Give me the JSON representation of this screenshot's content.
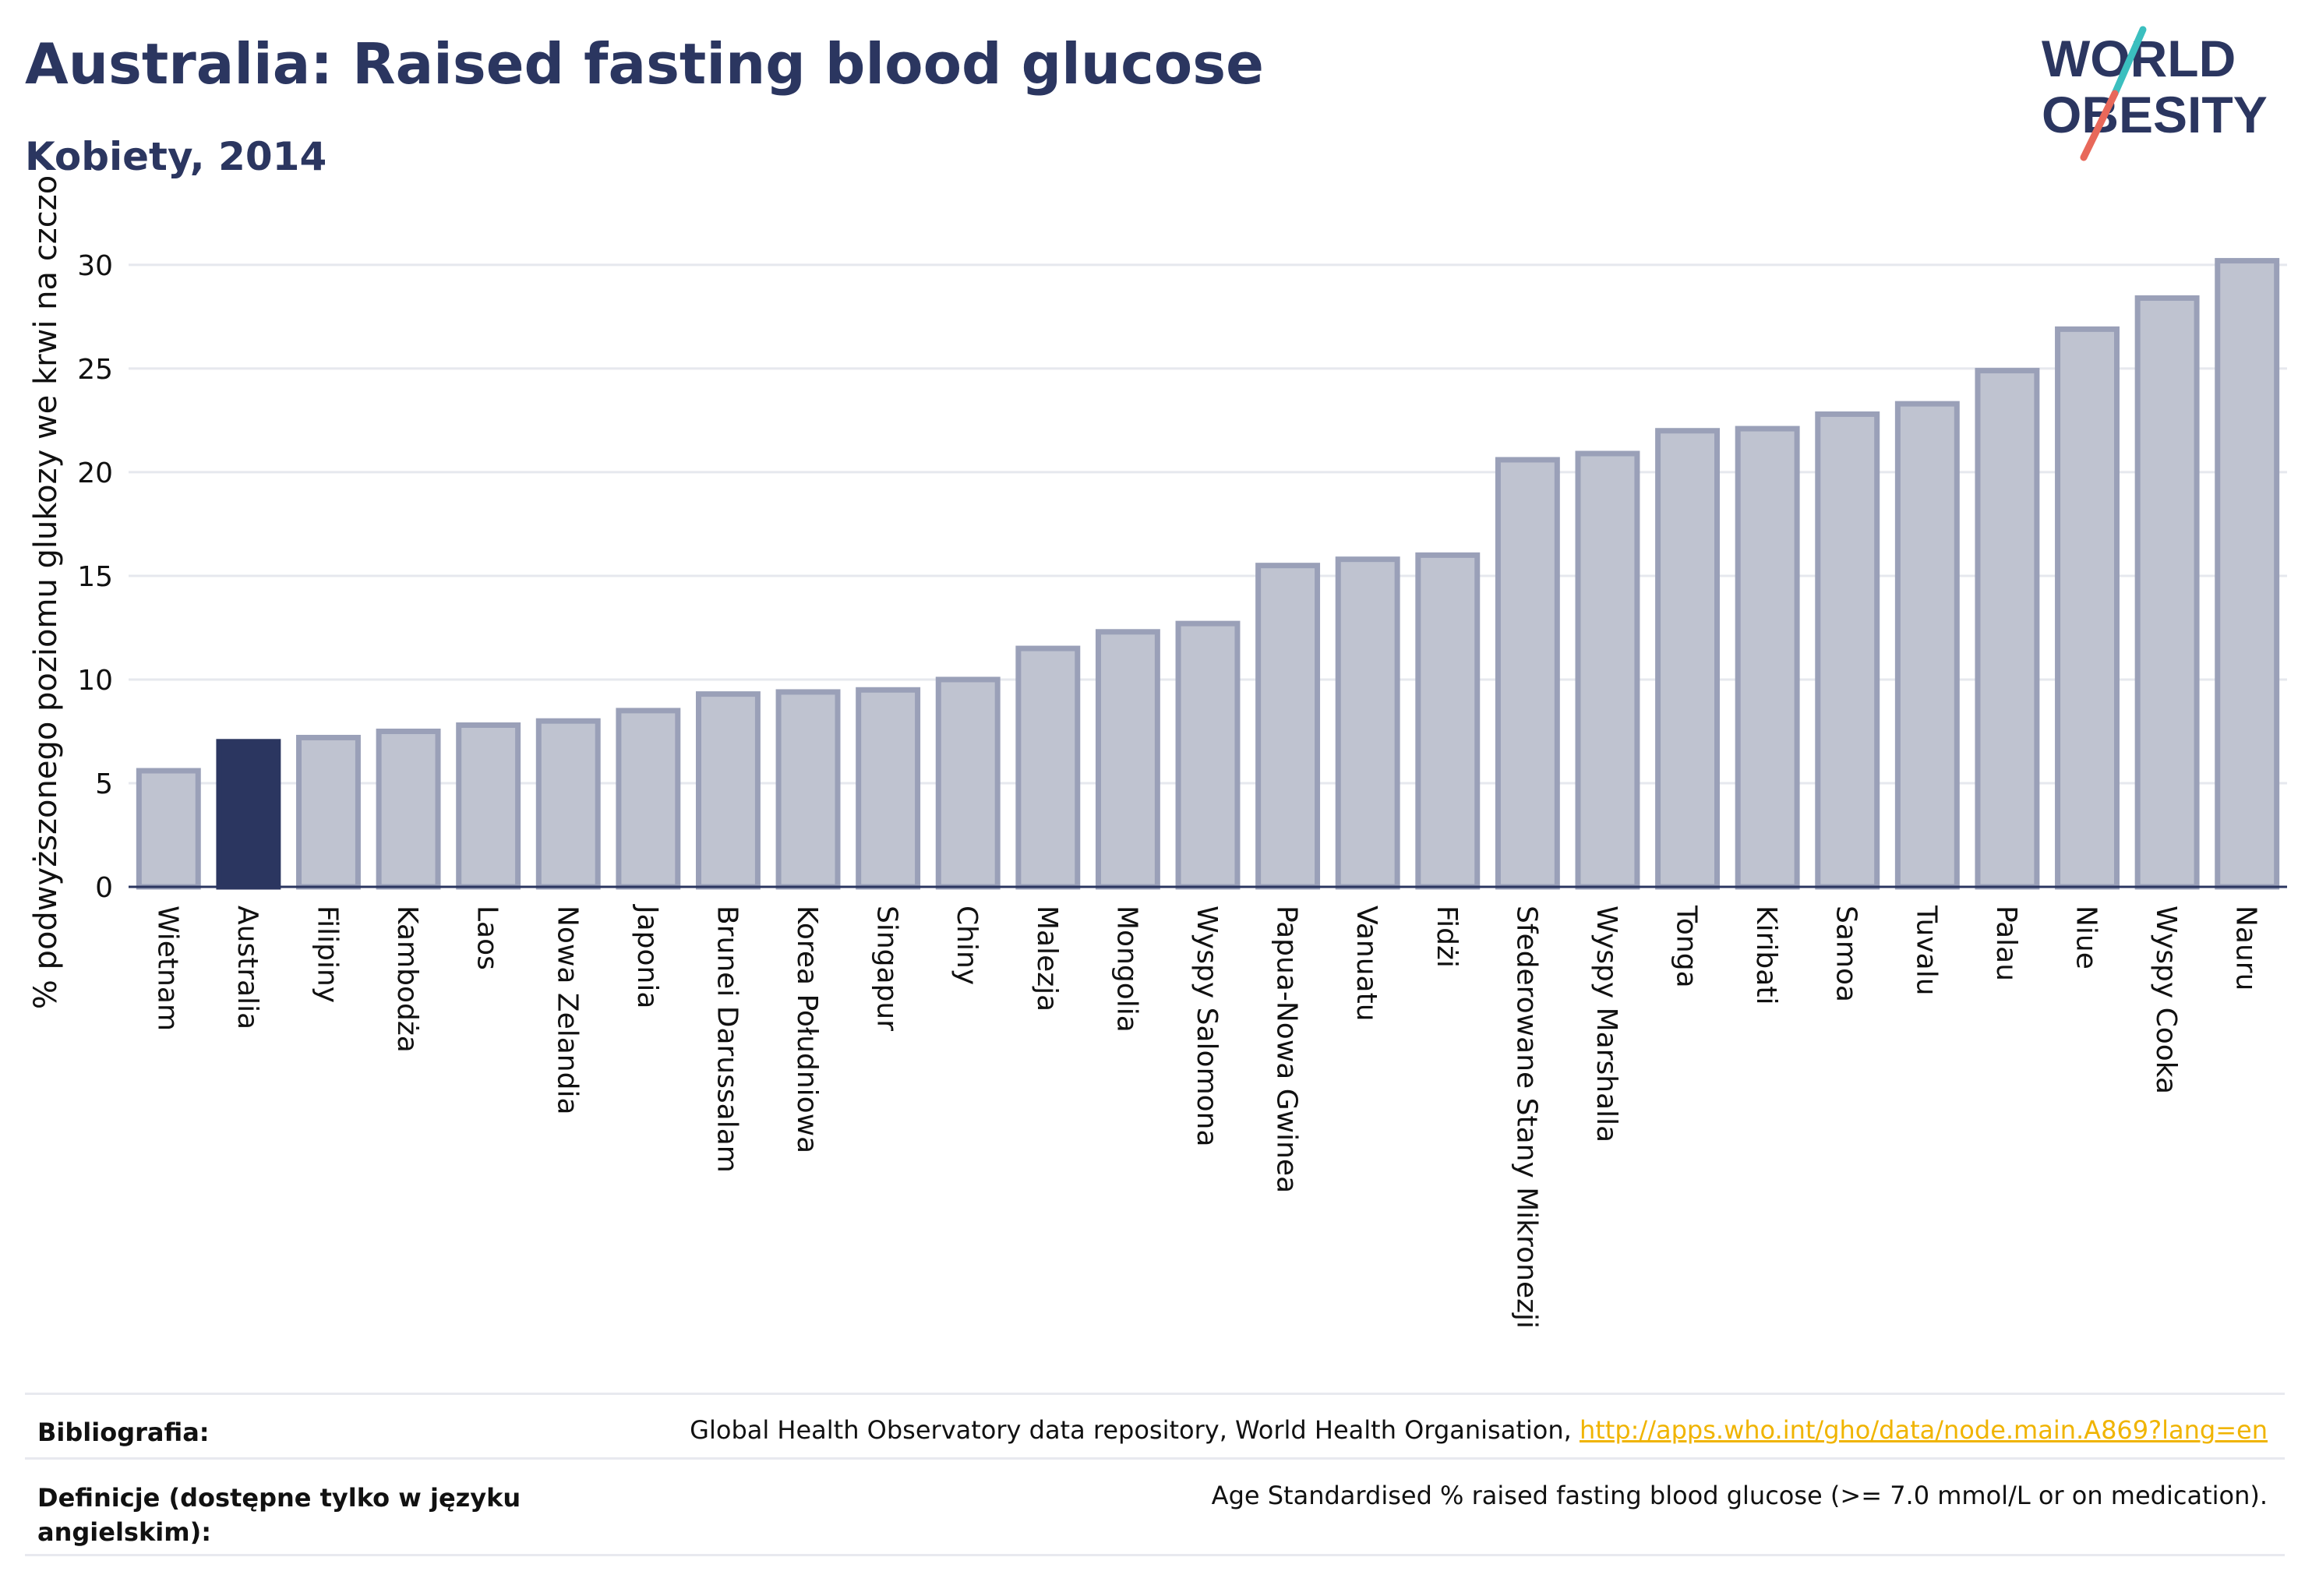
{
  "header": {
    "title": "Australia: Raised fasting blood glucose",
    "subtitle": "Kobiety, 2014"
  },
  "logo": {
    "line1": "WORLD",
    "line2": "OBESITY",
    "colors": {
      "text": "#2b3660",
      "slash_teal": "#3bbfbf",
      "slash_red": "#e8685a"
    }
  },
  "chart_data": {
    "type": "bar",
    "ylabel": "% podwyższonego poziomu glukozy we krwi na czczo",
    "ylim": [
      0,
      31.5
    ],
    "yticks": [
      0,
      5,
      10,
      15,
      20,
      25,
      30
    ],
    "grid": true,
    "highlight": "Australia",
    "colors": {
      "bar": "#bfc3d0",
      "bar_border": "#9aa0b8",
      "highlight": "#2b3660",
      "axis": "#2b3660",
      "grid": "#e6e8ee"
    },
    "categories": [
      "Wietnam",
      "Australia",
      "Filipiny",
      "Kambodża",
      "Laos",
      "Nowa Zelandia",
      "Japonia",
      "Brunei Darussalam",
      "Korea Południowa",
      "Singapur",
      "Chiny",
      "Malezja",
      "Mongolia",
      "Wyspy Salomona",
      "Papua-Nowa Gwinea",
      "Vanuatu",
      "Fidżi",
      "Sfederowane Stany Mikronezji",
      "Wyspy Marshalla",
      "Tonga",
      "Kiribati",
      "Samoa",
      "Tuvalu",
      "Palau",
      "Niue",
      "Wyspy Cooka",
      "Nauru"
    ],
    "values": [
      5.6,
      7.0,
      7.2,
      7.5,
      7.8,
      8.0,
      8.5,
      9.3,
      9.4,
      9.5,
      10.0,
      11.5,
      12.3,
      12.7,
      15.5,
      15.8,
      16.0,
      20.6,
      20.9,
      22.0,
      22.1,
      22.8,
      23.3,
      24.9,
      26.9,
      28.4,
      30.2
    ]
  },
  "footer": {
    "bibliography_label": "Bibliografia:",
    "bibliography_text": "Global Health Observatory data repository, World Health Organisation, ",
    "bibliography_link": "http://apps.who.int/gho/data/node.main.A869?lang=en",
    "definitions_label": "Definicje (dostępne tylko w języku angielskim):",
    "definitions_text": "Age Standardised % raised fasting blood glucose (>= 7.0 mmol/L or on medication)."
  }
}
